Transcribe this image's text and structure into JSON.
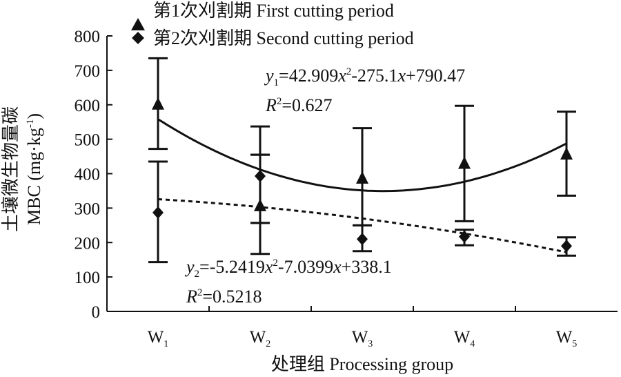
{
  "chart_data": {
    "type": "scatter",
    "categories": [
      "W1",
      "W2",
      "W3",
      "W4",
      "W5"
    ],
    "category_labels": [
      {
        "main": "W",
        "sub": "1"
      },
      {
        "main": "W",
        "sub": "2"
      },
      {
        "main": "W",
        "sub": "3"
      },
      {
        "main": "W",
        "sub": "4"
      },
      {
        "main": "W",
        "sub": "5"
      }
    ],
    "ylim": [
      0,
      800
    ],
    "yticks": [
      0,
      100,
      200,
      300,
      400,
      500,
      600,
      700,
      800
    ],
    "xlabel": "处理组 Processing group",
    "ylabel_cn": "土壤微生物量碳",
    "ylabel_en": "MBC (mg·kg",
    "ylabel_sup": "-1",
    "ylabel_close": ")",
    "legend_position": "top-center",
    "grid": false,
    "series": [
      {
        "name": "第1次刈割期 First cutting period",
        "marker": "triangle",
        "values": [
          600,
          305,
          385,
          428,
          455
        ],
        "error_upper": [
          735,
          455,
          532,
          597,
          580
        ],
        "error_lower": [
          472,
          257,
          250,
          262,
          336
        ],
        "error_upper_w2": 537,
        "error_lower_w2": 167,
        "fit": {
          "coeffs": [
            42.909,
            -275.1,
            790.47
          ],
          "equation": {
            "y": "y",
            "y_sub": "1",
            "rest": "=42.909",
            "x1": "x",
            "sup": "2",
            "rest2": "-275.1",
            "x2": "x",
            "rest3": "+790.47"
          },
          "r2_label": "R",
          "r2_sup": "2",
          "r2_value": "=0.627",
          "style": "solid"
        }
      },
      {
        "name": "第2次刈割期 Second cutting period",
        "marker": "diamond",
        "values": [
          287,
          393,
          210,
          217,
          190
        ],
        "error_upper": [
          435,
          455,
          250,
          237,
          215
        ],
        "error_lower": [
          143,
          257,
          175,
          192,
          162
        ],
        "fit": {
          "coeffs": [
            -5.2419,
            -7.0399,
            338.1
          ],
          "equation": {
            "y": "y",
            "y_sub": "2",
            "rest": "=-5.2419",
            "x1": "x",
            "sup": "2",
            "rest2": "-7.0399",
            "x2": "x",
            "rest3": "+338.1"
          },
          "r2_label": "R",
          "r2_sup": "2",
          "r2_value": "=0.5218",
          "style": "dashed"
        }
      }
    ]
  }
}
